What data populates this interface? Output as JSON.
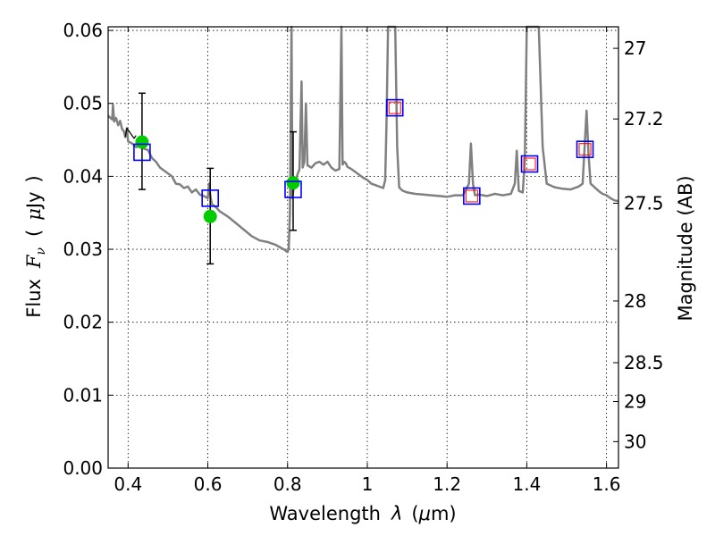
{
  "chart_data": {
    "type": "scatter",
    "xlabel_text": "Wavelength",
    "xlabel_symbol": "λ",
    "xlabel_unit_open": "(",
    "xlabel_unit_mu": "μ",
    "xlabel_unit_rest": "m)",
    "ylabel_text": "Flux",
    "ylabel_symbol": "F",
    "ylabel_subscript": "ν",
    "ylabel_unit_open": "(",
    "ylabel_unit_mu": "μ",
    "ylabel_unit_rest": "Jy",
    "ylabel_unit_close": ")",
    "y2label": "Magnitude (AB)",
    "xlim": [
      0.35,
      1.63
    ],
    "ylim": [
      0.0,
      0.0605
    ],
    "x_ticks": [
      {
        "value": 0.4,
        "label": "0.4"
      },
      {
        "value": 0.6,
        "label": "0.6"
      },
      {
        "value": 0.8,
        "label": "0.8"
      },
      {
        "value": 1.0,
        "label": "1"
      },
      {
        "value": 1.2,
        "label": "1.2"
      },
      {
        "value": 1.4,
        "label": "1.4"
      },
      {
        "value": 1.6,
        "label": "1.6"
      }
    ],
    "y_ticks": [
      {
        "value": 0.0,
        "label": "0.00"
      },
      {
        "value": 0.01,
        "label": "0.01"
      },
      {
        "value": 0.02,
        "label": "0.02"
      },
      {
        "value": 0.03,
        "label": "0.03"
      },
      {
        "value": 0.04,
        "label": "0.04"
      },
      {
        "value": 0.05,
        "label": "0.05"
      },
      {
        "value": 0.06,
        "label": "0.06"
      }
    ],
    "y2_ticks": [
      {
        "value": 27.0,
        "label": "27"
      },
      {
        "value": 27.2,
        "label": "27.2"
      },
      {
        "value": 27.5,
        "label": "27.5"
      },
      {
        "value": 28.0,
        "label": "28"
      },
      {
        "value": 28.5,
        "label": "28.5"
      },
      {
        "value": 29.0,
        "label": "29"
      },
      {
        "value": 30.0,
        "label": "30"
      }
    ],
    "grid": true,
    "colors": {
      "model": "#808080",
      "observed": "#00cc00",
      "errorbar": "#000000",
      "synthetic_box": "#0000ff",
      "inner_box": "#ff0000"
    },
    "series": [
      {
        "type": "line",
        "color": "#808080",
        "x": [
          0.35,
          0.36,
          0.362,
          0.365,
          0.37,
          0.375,
          0.38,
          0.385,
          0.39,
          0.393,
          0.397,
          0.4,
          0.41,
          0.42,
          0.43,
          0.44,
          0.45,
          0.46,
          0.47,
          0.48,
          0.49,
          0.5,
          0.51,
          0.52,
          0.53,
          0.54,
          0.55,
          0.56,
          0.57,
          0.58,
          0.59,
          0.6,
          0.603,
          0.606,
          0.61,
          0.62,
          0.63,
          0.65,
          0.67,
          0.69,
          0.71,
          0.73,
          0.75,
          0.77,
          0.79,
          0.8,
          0.803,
          0.806,
          0.81,
          0.812,
          0.815,
          0.818,
          0.822,
          0.826,
          0.83,
          0.835,
          0.838,
          0.842,
          0.846,
          0.85,
          0.86,
          0.87,
          0.88,
          0.89,
          0.9,
          0.91,
          0.92,
          0.93,
          0.935,
          0.938,
          0.942,
          0.946,
          0.95,
          0.96,
          0.97,
          0.98,
          0.99,
          1.0,
          1.01,
          1.02,
          1.03,
          1.04,
          1.045,
          1.048,
          1.052,
          1.056,
          1.06,
          1.065,
          1.07,
          1.075,
          1.08,
          1.085,
          1.09,
          1.1,
          1.12,
          1.14,
          1.16,
          1.18,
          1.2,
          1.22,
          1.24,
          1.255,
          1.26,
          1.265,
          1.27,
          1.28,
          1.3,
          1.32,
          1.34,
          1.36,
          1.37,
          1.375,
          1.38,
          1.39,
          1.395,
          1.4,
          1.405,
          1.41,
          1.42,
          1.43,
          1.44,
          1.45,
          1.47,
          1.49,
          1.51,
          1.53,
          1.54,
          1.545,
          1.55,
          1.555,
          1.56,
          1.57,
          1.58,
          1.59,
          1.6,
          1.61,
          1.62,
          1.63
        ],
        "y": [
          0.0483,
          0.0478,
          0.0498,
          0.0475,
          0.048,
          0.047,
          0.0476,
          0.0465,
          0.0461,
          0.0454,
          0.0466,
          0.0448,
          0.0445,
          0.044,
          0.0442,
          0.0438,
          0.0436,
          0.0425,
          0.042,
          0.0412,
          0.0408,
          0.0404,
          0.04,
          0.039,
          0.0389,
          0.0384,
          0.0386,
          0.0378,
          0.0382,
          0.0375,
          0.0373,
          0.037,
          0.039,
          0.0375,
          0.0362,
          0.0358,
          0.0352,
          0.0345,
          0.0336,
          0.0327,
          0.0318,
          0.0312,
          0.031,
          0.0306,
          0.03,
          0.0296,
          0.0302,
          0.035,
          0.0605,
          0.037,
          0.0382,
          0.0392,
          0.0398,
          0.0404,
          0.041,
          0.053,
          0.0412,
          0.042,
          0.05,
          0.0415,
          0.0412,
          0.0418,
          0.042,
          0.0416,
          0.042,
          0.0412,
          0.0408,
          0.041,
          0.0605,
          0.0416,
          0.042,
          0.0418,
          0.0413,
          0.041,
          0.0406,
          0.0402,
          0.0398,
          0.0395,
          0.039,
          0.0388,
          0.0386,
          0.0384,
          0.0395,
          0.047,
          0.0605,
          0.0605,
          0.0605,
          0.0605,
          0.0605,
          0.044,
          0.0385,
          0.0382,
          0.038,
          0.0378,
          0.0376,
          0.0375,
          0.0374,
          0.0373,
          0.0372,
          0.0374,
          0.0374,
          0.039,
          0.0445,
          0.039,
          0.0374,
          0.0375,
          0.0373,
          0.0376,
          0.0374,
          0.0376,
          0.039,
          0.0435,
          0.038,
          0.0378,
          0.042,
          0.0605,
          0.0605,
          0.0605,
          0.0605,
          0.0605,
          0.044,
          0.039,
          0.0385,
          0.0383,
          0.0382,
          0.0386,
          0.039,
          0.044,
          0.049,
          0.043,
          0.039,
          0.0385,
          0.038,
          0.0376,
          0.0374,
          0.037,
          0.0367,
          0.0366
        ]
      },
      {
        "type": "line",
        "color": "#000000",
        "x": [
          0.393,
          0.397,
          0.415,
          0.42
        ],
        "y": [
          0.0454,
          0.0466,
          0.0452,
          0.0456
        ]
      }
    ],
    "observed": [
      {
        "x": 0.435,
        "y": 0.0447,
        "err_low": 0.0382,
        "err_high": 0.0514
      },
      {
        "x": 0.606,
        "y": 0.0345,
        "err_low": 0.028,
        "err_high": 0.0411
      },
      {
        "x": 0.814,
        "y": 0.0391,
        "err_low": 0.0326,
        "err_high": 0.0461
      }
    ],
    "synthetic": [
      {
        "x": 0.435,
        "y": 0.0433,
        "inner": false
      },
      {
        "x": 0.606,
        "y": 0.037,
        "inner": false
      },
      {
        "x": 0.814,
        "y": 0.0382,
        "inner": false
      },
      {
        "x": 1.069,
        "y": 0.0494,
        "inner": true
      },
      {
        "x": 1.262,
        "y": 0.0373,
        "inner": true
      },
      {
        "x": 1.407,
        "y": 0.0417,
        "inner": true
      },
      {
        "x": 1.546,
        "y": 0.0437,
        "inner": true
      }
    ]
  }
}
